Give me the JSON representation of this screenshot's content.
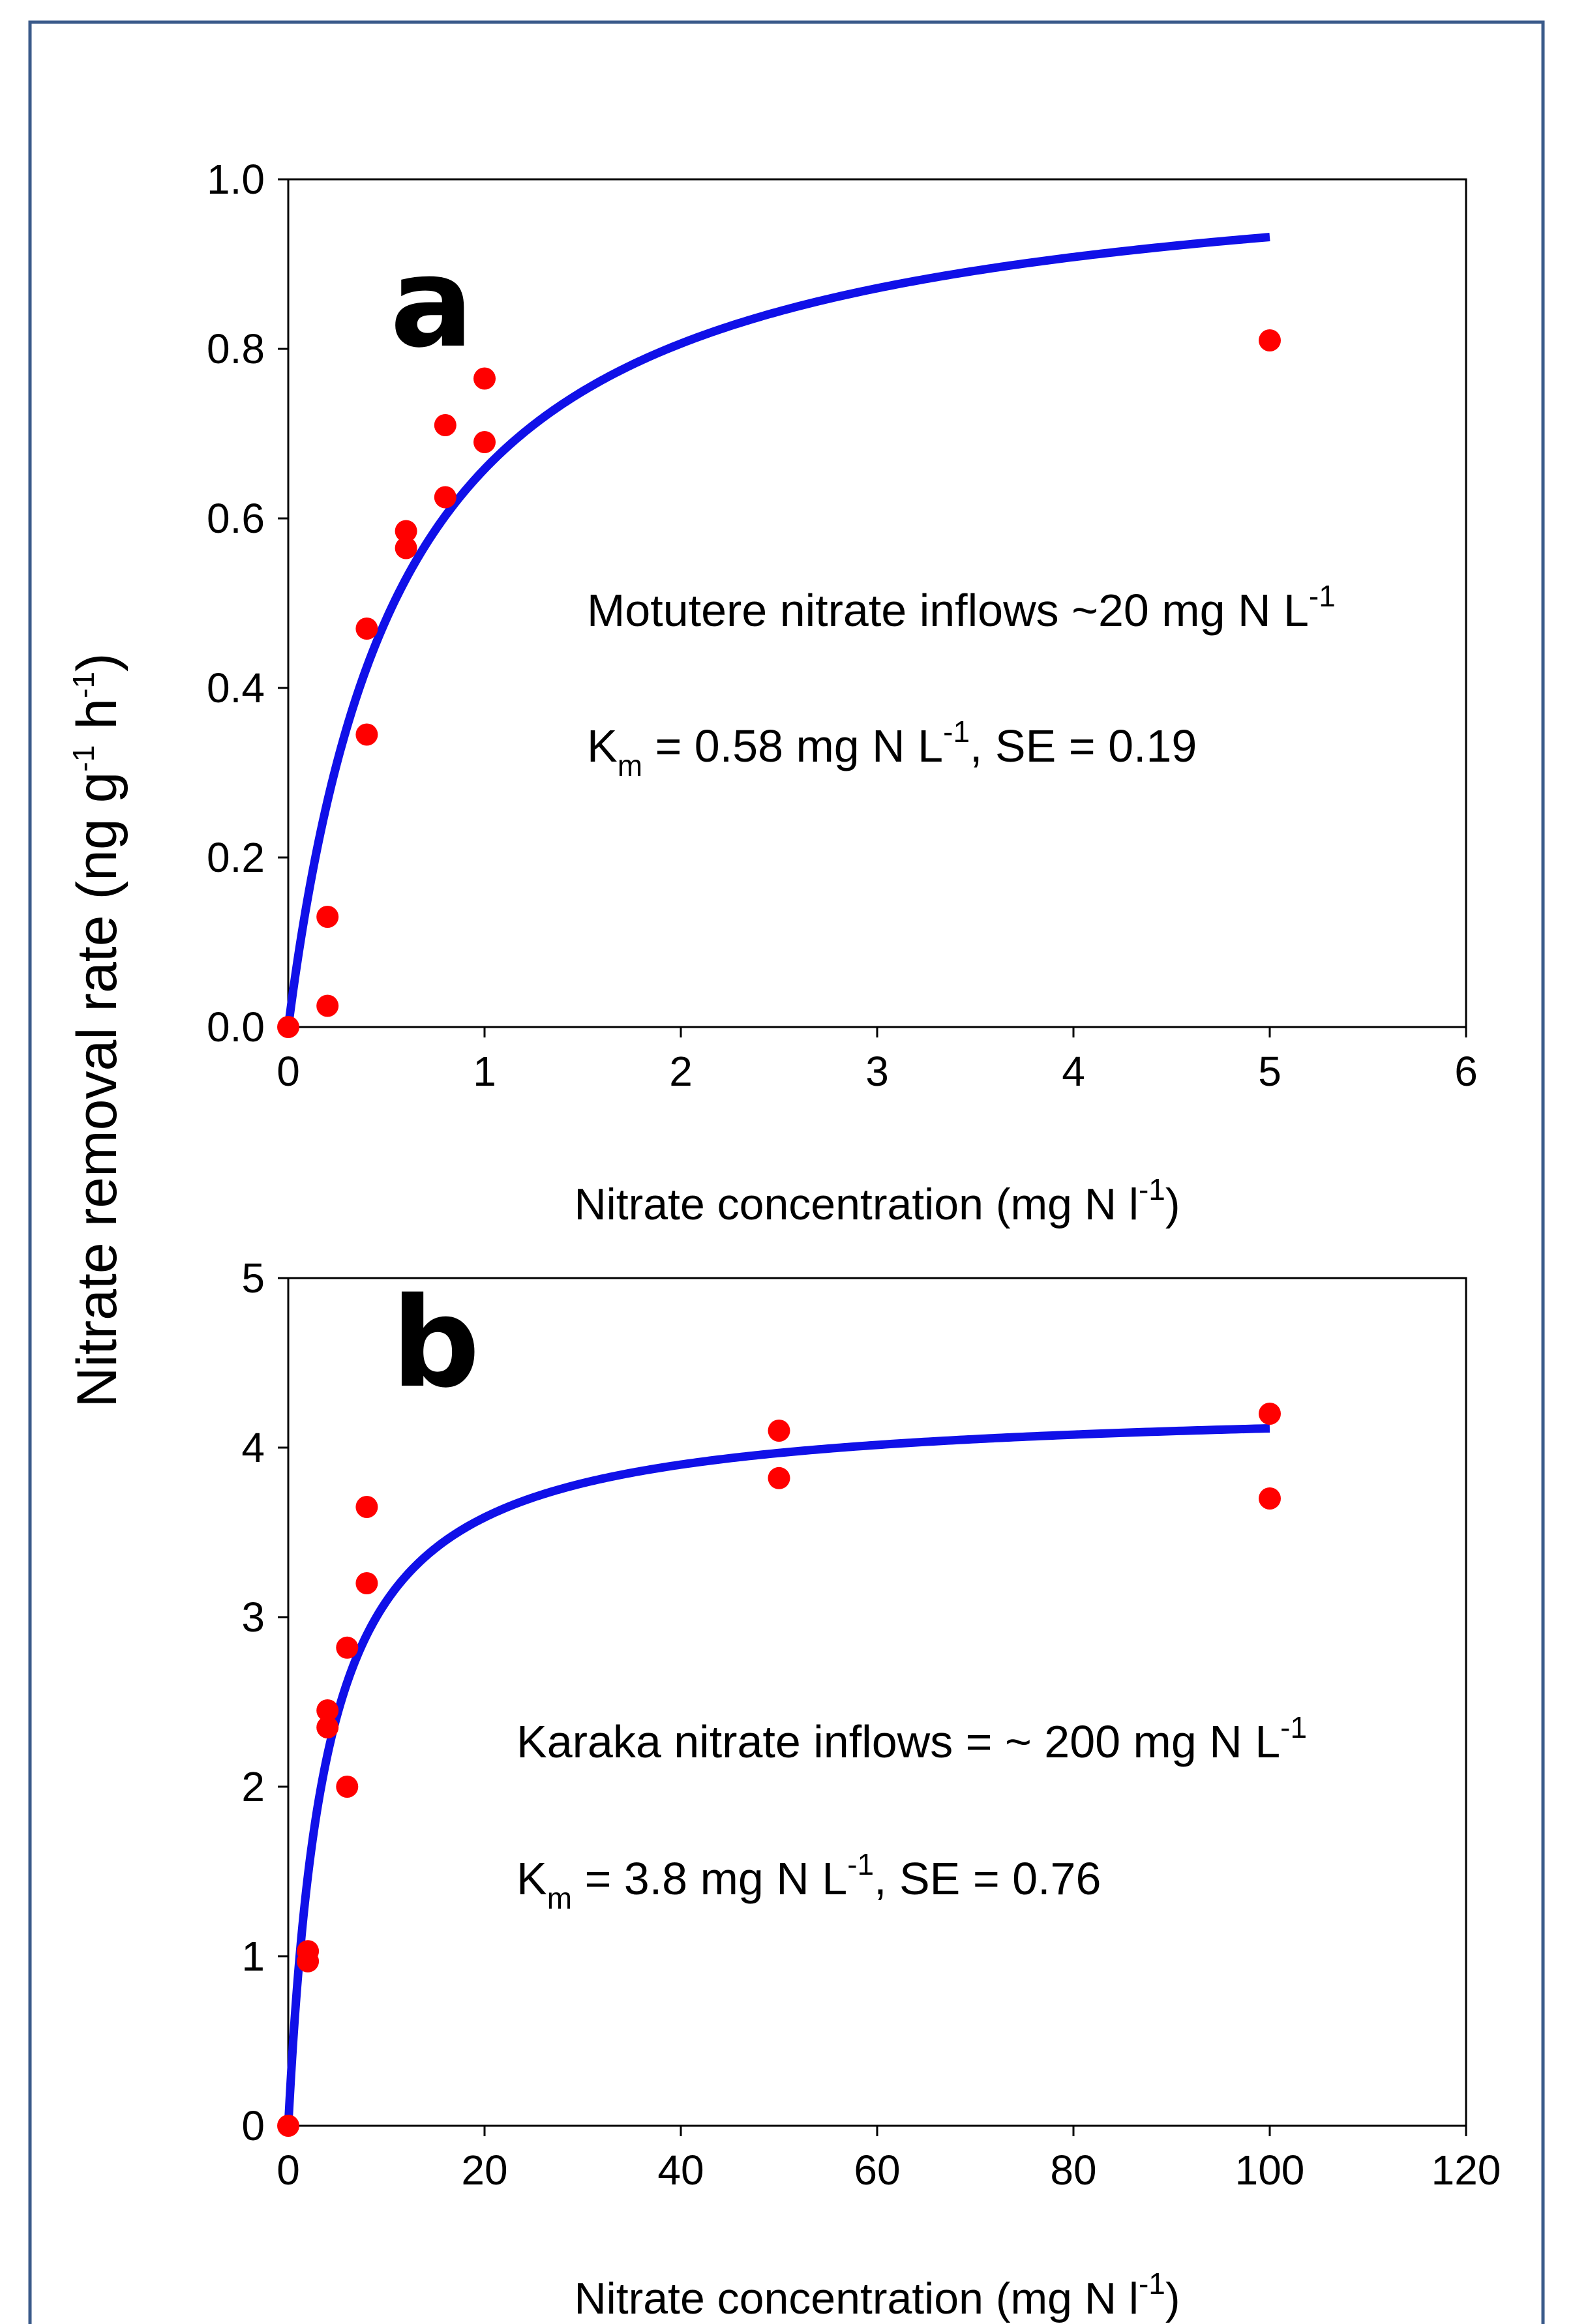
{
  "figure": {
    "border_color": "#3a5a8a",
    "curve_color": "#1010e8",
    "point_color": "#ff0000",
    "ylabel": {
      "text": "Nitrate removal rate (ng g",
      "sup1": "-1",
      "mid": " h",
      "sup2": "-1",
      "end": ")"
    }
  },
  "chart_data": [
    {
      "type": "scatter",
      "panel": "a",
      "xlabel": {
        "text": "Nitrate concentration (mg N l",
        "sup": "-1",
        "end": ")"
      },
      "xlim": [
        0,
        6
      ],
      "ylim": [
        0,
        1.0
      ],
      "xticks": [
        "0",
        "1",
        "2",
        "3",
        "4",
        "5",
        "6"
      ],
      "yticks": [
        "0.0",
        "0.2",
        "0.4",
        "0.6",
        "0.8",
        "1.0"
      ],
      "annotation1": {
        "text": "Motutere nitrate inflows ~20 mg N L",
        "sup": "-1"
      },
      "annotation2": {
        "k": "K",
        "sub": "m",
        "text": " = 0.58 mg N L",
        "sup": "-1",
        "end": ", SE = 0.19"
      },
      "fit": {
        "model": "michaelis-menten",
        "vmax": 1.04,
        "km": 0.58,
        "x_range": [
          0,
          5
        ]
      },
      "points": [
        {
          "x": 0,
          "y": 0.0
        },
        {
          "x": 0.2,
          "y": 0.13
        },
        {
          "x": 0.2,
          "y": 0.025
        },
        {
          "x": 0.4,
          "y": 0.47
        },
        {
          "x": 0.4,
          "y": 0.345
        },
        {
          "x": 0.6,
          "y": 0.585
        },
        {
          "x": 0.6,
          "y": 0.565
        },
        {
          "x": 0.8,
          "y": 0.71
        },
        {
          "x": 0.8,
          "y": 0.625
        },
        {
          "x": 1.0,
          "y": 0.765
        },
        {
          "x": 1.0,
          "y": 0.69
        },
        {
          "x": 5.0,
          "y": 0.81
        }
      ]
    },
    {
      "type": "scatter",
      "panel": "b",
      "xlabel": {
        "text": "Nitrate concentration (mg N l",
        "sup": "-1",
        "end": ")"
      },
      "xlim": [
        0,
        120
      ],
      "ylim": [
        0,
        5
      ],
      "xticks": [
        "0",
        "20",
        "40",
        "60",
        "80",
        "100",
        "120"
      ],
      "yticks": [
        "0",
        "1",
        "2",
        "3",
        "4",
        "5"
      ],
      "annotation1": {
        "text": "Karaka nitrate inflows = ~ 200 mg N L",
        "sup": "-1"
      },
      "annotation2": {
        "k": "K",
        "sub": "m",
        "text": " = 3.8 mg N L",
        "sup": "-1",
        "end": ", SE = 0.76"
      },
      "fit": {
        "model": "michaelis-menten",
        "vmax": 4.27,
        "km": 3.8,
        "x_range": [
          0,
          100
        ]
      },
      "points": [
        {
          "x": 0,
          "y": 0.0
        },
        {
          "x": 2,
          "y": 1.03
        },
        {
          "x": 2,
          "y": 0.97
        },
        {
          "x": 4,
          "y": 2.45
        },
        {
          "x": 4,
          "y": 2.35
        },
        {
          "x": 6,
          "y": 2.82
        },
        {
          "x": 6,
          "y": 2.0
        },
        {
          "x": 8,
          "y": 3.65
        },
        {
          "x": 8,
          "y": 3.2
        },
        {
          "x": 50,
          "y": 4.1
        },
        {
          "x": 50,
          "y": 3.82
        },
        {
          "x": 100,
          "y": 4.2
        },
        {
          "x": 100,
          "y": 3.7
        }
      ]
    }
  ]
}
